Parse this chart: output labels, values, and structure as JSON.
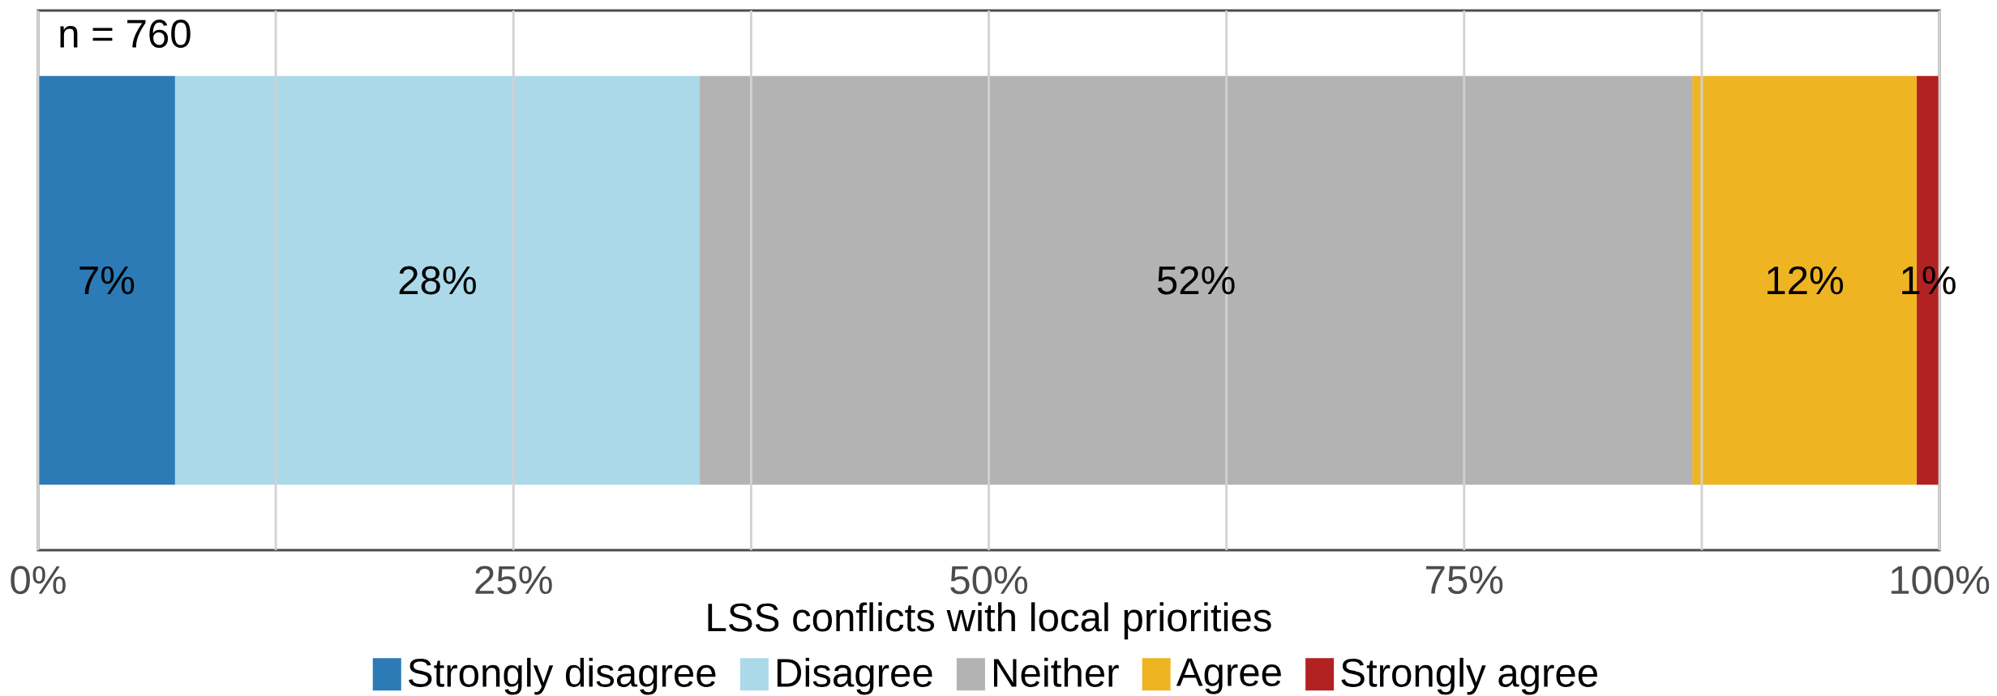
{
  "chart_data": {
    "type": "bar",
    "orientation": "horizontal",
    "stacked": true,
    "xlabel": "LSS conflicts with local priorities",
    "categories": [
      null
    ],
    "series": [
      {
        "name": "Strongly disagree",
        "color": "#2c7bb6",
        "values": [
          7.2
        ],
        "value_labels": [
          "7%"
        ]
      },
      {
        "name": "Disagree",
        "color": "#abd9e9",
        "values": [
          27.6
        ],
        "value_labels": [
          "28%"
        ]
      },
      {
        "name": "Neither",
        "color": "#b3b3b3",
        "values": [
          52.2
        ],
        "value_labels": [
          "52%"
        ]
      },
      {
        "name": "Agree",
        "color": "#eeb422",
        "values": [
          11.8
        ],
        "value_labels": [
          "12%"
        ]
      },
      {
        "name": "Strongly agree",
        "color": "#b22222",
        "values": [
          1.2
        ],
        "value_labels": [
          "1%"
        ]
      }
    ],
    "xlim": [
      0,
      100
    ],
    "xticks": [
      {
        "value": 0,
        "label": "0%"
      },
      {
        "value": 12.5,
        "label": null
      },
      {
        "value": 25,
        "label": "25%"
      },
      {
        "value": 37.5,
        "label": null
      },
      {
        "value": 50,
        "label": "50%"
      },
      {
        "value": 62.5,
        "label": null
      },
      {
        "value": 75,
        "label": "75%"
      },
      {
        "value": 87.5,
        "label": null
      },
      {
        "value": 100,
        "label": "100%"
      }
    ],
    "grid": "x",
    "legend": "bottom",
    "tick_labels": "x",
    "annotations": [
      "n = 760"
    ]
  }
}
